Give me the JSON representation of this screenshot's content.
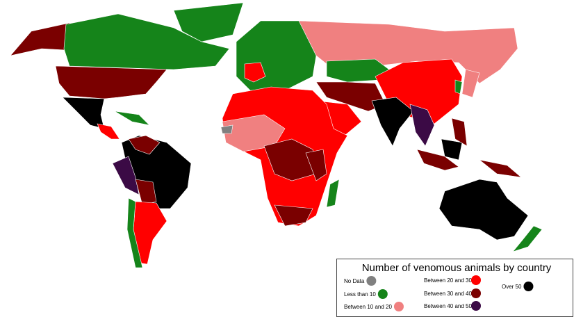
{
  "legend": {
    "title": "Number of venomous animals by country",
    "items": [
      {
        "label": "No Data",
        "color": "#808080"
      },
      {
        "label": "Less than 10",
        "color": "#15841a"
      },
      {
        "label": "Between 10 and 20",
        "color": "#f08080"
      },
      {
        "label": "Between 20 and 30",
        "color": "#ff0000"
      },
      {
        "label": "Between 30 and 40",
        "color": "#7a0000"
      },
      {
        "label": "Between 40 and 50",
        "color": "#3b0a45"
      },
      {
        "label": "Over 50",
        "color": "#000000"
      }
    ]
  }
}
